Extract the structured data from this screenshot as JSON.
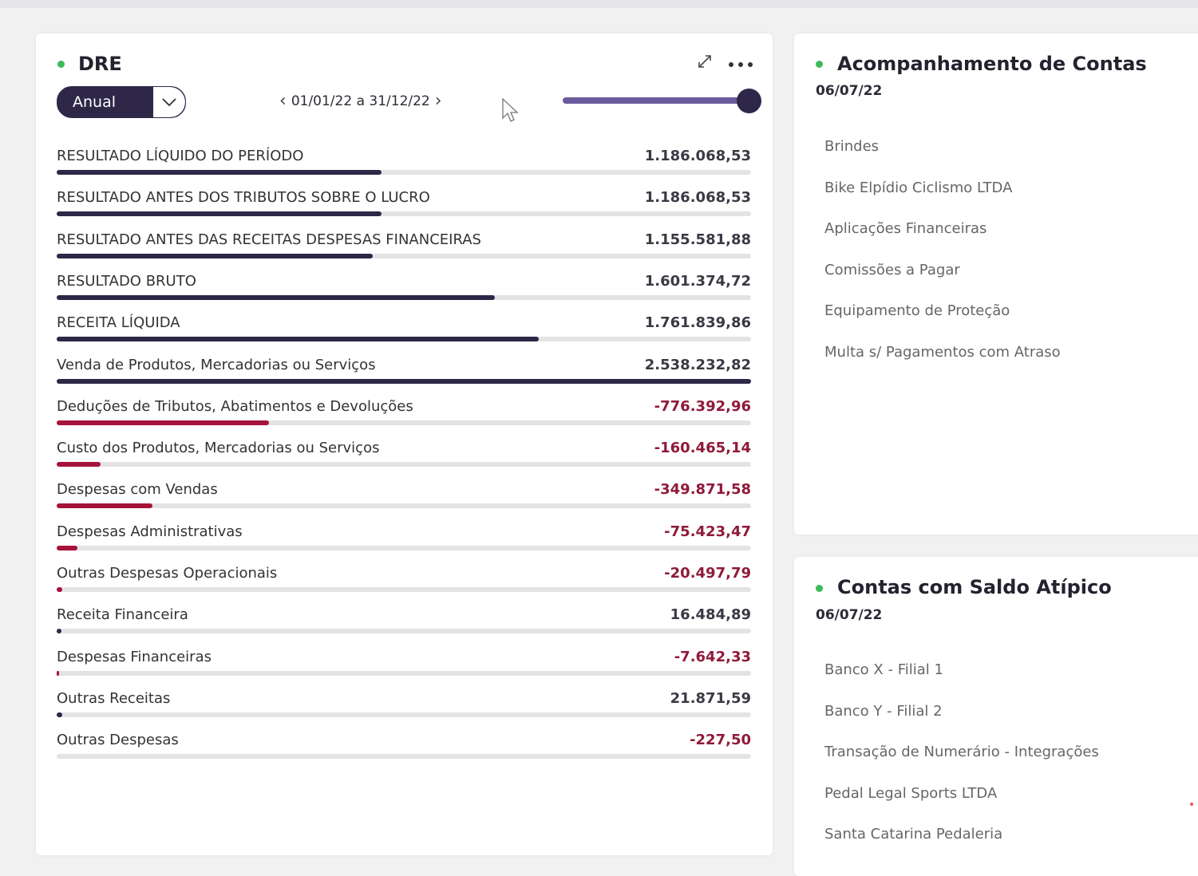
{
  "colors": {
    "accent": "#2e2748",
    "negative": "#a5123a",
    "status": "#3dbb5a"
  },
  "dre": {
    "title": "DRE",
    "period_select": "Anual",
    "period_range": "01/01/22 a 31/12/22",
    "prev_icon": "chevron-left-icon",
    "next_icon": "chevron-right-icon",
    "slider_value_percent": 100,
    "rows": [
      {
        "label": "RESULTADO LÍQUIDO DO PERÍODO",
        "value": "1.186.068,53",
        "negative": false
      },
      {
        "label": "RESULTADO ANTES DOS TRIBUTOS SOBRE O LUCRO",
        "value": "1.186.068,53",
        "negative": false
      },
      {
        "label": "RESULTADO ANTES DAS RECEITAS DESPESAS FINANCEIRAS",
        "value": "1.155.581,88",
        "negative": false
      },
      {
        "label": "RESULTADO BRUTO",
        "value": "1.601.374,72",
        "negative": false
      },
      {
        "label": "RECEITA LÍQUIDA",
        "value": "1.761.839,86",
        "negative": false
      },
      {
        "label": "Venda de Produtos, Mercadorias ou Serviços",
        "value": "2.538.232,82",
        "negative": false
      },
      {
        "label": "Deduções de Tributos, Abatimentos e Devoluções",
        "value": "-776.392,96",
        "negative": true
      },
      {
        "label": "Custo dos Produtos, Mercadorias ou Serviços",
        "value": "-160.465,14",
        "negative": true
      },
      {
        "label": "Despesas com Vendas",
        "value": "-349.871,58",
        "negative": true
      },
      {
        "label": "Despesas Administrativas",
        "value": "-75.423,47",
        "negative": true
      },
      {
        "label": "Outras Despesas Operacionais",
        "value": "-20.497,79",
        "negative": true
      },
      {
        "label": "Receita Financeira",
        "value": "16.484,89",
        "negative": false
      },
      {
        "label": "Despesas Financeiras",
        "value": "-7.642,33",
        "negative": true
      },
      {
        "label": "Outras Receitas",
        "value": "21.871,59",
        "negative": false
      },
      {
        "label": "Outras Despesas",
        "value": "-227,50",
        "negative": true
      }
    ]
  },
  "acompanhamento": {
    "title": "Acompanhamento de Contas",
    "date": "06/07/22",
    "items": [
      "Brindes",
      "Bike Elpídio Ciclismo LTDA",
      "Aplicações Financeiras",
      "Comissões a Pagar",
      "Equipamento de Proteção",
      "Multa s/ Pagamentos com Atraso"
    ]
  },
  "atipico": {
    "title": "Contas com Saldo Atípico",
    "date": "06/07/22",
    "items": [
      "Banco X - Filial 1",
      "Banco Y - Filial 2",
      "Transação de Numerário - Integrações",
      "Pedal Legal Sports LTDA",
      "Santa Catarina Pedaleria"
    ]
  }
}
